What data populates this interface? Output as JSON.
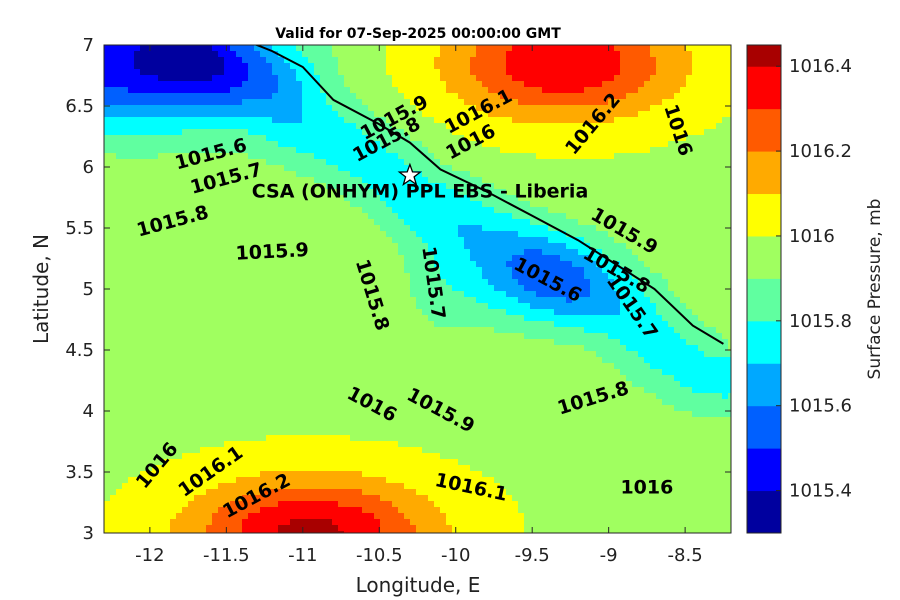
{
  "chart_data": {
    "type": "contour",
    "title": "Valid for 07-Sep-2025 00:00:00 GMT",
    "xlabel": "Longitude, E",
    "ylabel": "Latitude, N",
    "xlim": [
      -12.3,
      -8.2
    ],
    "ylim": [
      3,
      7
    ],
    "x_ticks": [
      -12,
      -11.5,
      -11,
      -10.5,
      -10,
      -9.5,
      -9,
      -8.5
    ],
    "x_tick_labels": [
      "-12",
      "-11.5",
      "-11",
      "-10.5",
      "-10",
      "-9.5",
      "-9",
      "-8.5"
    ],
    "y_ticks": [
      3,
      3.5,
      4,
      4.5,
      5,
      5.5,
      6,
      6.5,
      7
    ],
    "y_tick_labels": [
      "3",
      "3.5",
      "4",
      "4.5",
      "5",
      "5.5",
      "6",
      "6.5",
      "7"
    ],
    "grid": false,
    "colorbar": {
      "label": "Surface Pressure, mb",
      "range": [
        1015.3,
        1016.45
      ],
      "ticks": [
        1015.4,
        1015.6,
        1015.8,
        1016,
        1016.2,
        1016.4
      ],
      "tick_labels": [
        "1015.4",
        "1015.6",
        "1015.8",
        "1016",
        "1016.2",
        "1016.4"
      ],
      "levels": [
        {
          "from": 1015.3,
          "to": 1015.4,
          "color": "#00009f"
        },
        {
          "from": 1015.4,
          "to": 1015.5,
          "color": "#0000ff"
        },
        {
          "from": 1015.5,
          "to": 1015.6,
          "color": "#0060ff"
        },
        {
          "from": 1015.6,
          "to": 1015.7,
          "color": "#00a8ff"
        },
        {
          "from": 1015.7,
          "to": 1015.8,
          "color": "#00ffff"
        },
        {
          "from": 1015.8,
          "to": 1015.9,
          "color": "#60ffa0"
        },
        {
          "from": 1015.9,
          "to": 1016.0,
          "color": "#a0ff60"
        },
        {
          "from": 1016.0,
          "to": 1016.1,
          "color": "#ffff00"
        },
        {
          "from": 1016.1,
          "to": 1016.2,
          "color": "#ffaa00"
        },
        {
          "from": 1016.2,
          "to": 1016.3,
          "color": "#ff5a00"
        },
        {
          "from": 1016.3,
          "to": 1016.4,
          "color": "#ff0000"
        },
        {
          "from": 1016.4,
          "to": 1016.5,
          "color": "#a80000"
        }
      ]
    },
    "pressure_centers": [
      {
        "lon": -9.45,
        "lat": 5.05,
        "value": 1015.55,
        "amp": -0.26,
        "sx": 0.5,
        "sy": 0.38
      },
      {
        "lon": -12.1,
        "lat": 6.85,
        "value": 1015.3,
        "amp": -0.55,
        "sx": 0.9,
        "sy": 0.55
      },
      {
        "lon": -10.95,
        "lat": 3.0,
        "value": 1016.35,
        "amp": 0.45,
        "sx": 0.8,
        "sy": 0.45
      },
      {
        "lon": -9.3,
        "lat": 6.85,
        "value": 1016.25,
        "amp": 0.42,
        "sx": 0.75,
        "sy": 0.45
      }
    ],
    "contour_labels": [
      {
        "text": "1016.1",
        "lon": -9.85,
        "lat": 6.45,
        "angle": -28
      },
      {
        "text": "1015.9",
        "lon": -10.4,
        "lat": 6.4,
        "angle": -28
      },
      {
        "text": "1016",
        "lon": -9.9,
        "lat": 6.2,
        "angle": -28
      },
      {
        "text": "1015.8",
        "lon": -10.45,
        "lat": 6.22,
        "angle": -28
      },
      {
        "text": "1016.2",
        "lon": -9.1,
        "lat": 6.35,
        "angle": -50
      },
      {
        "text": "1016",
        "lon": -8.55,
        "lat": 6.3,
        "angle": 72
      },
      {
        "text": "1015.6",
        "lon": -11.6,
        "lat": 6.1,
        "angle": -15
      },
      {
        "text": "1015.7",
        "lon": -11.5,
        "lat": 5.9,
        "angle": -15
      },
      {
        "text": "1015.8",
        "lon": -11.85,
        "lat": 5.55,
        "angle": -15
      },
      {
        "text": "1015.9",
        "lon": -11.2,
        "lat": 5.3,
        "angle": -3
      },
      {
        "text": "1015.9",
        "lon": -8.9,
        "lat": 5.47,
        "angle": 30
      },
      {
        "text": "1015.8",
        "lon": -8.95,
        "lat": 5.15,
        "angle": 30
      },
      {
        "text": "1015.6",
        "lon": -9.4,
        "lat": 5.07,
        "angle": 28
      },
      {
        "text": "1015.7",
        "lon": -8.85,
        "lat": 4.85,
        "angle": 55
      },
      {
        "text": "1015.8",
        "lon": -10.55,
        "lat": 4.95,
        "angle": 73
      },
      {
        "text": "1015.7",
        "lon": -10.15,
        "lat": 5.05,
        "angle": 82
      },
      {
        "text": "1016",
        "lon": -10.55,
        "lat": 4.05,
        "angle": 28
      },
      {
        "text": "1015.9",
        "lon": -10.1,
        "lat": 4.0,
        "angle": 28
      },
      {
        "text": "1015.8",
        "lon": -9.1,
        "lat": 4.1,
        "angle": -17
      },
      {
        "text": "1016",
        "lon": -11.95,
        "lat": 3.55,
        "angle": -50
      },
      {
        "text": "1016.1",
        "lon": -11.6,
        "lat": 3.5,
        "angle": -35
      },
      {
        "text": "1016.2",
        "lon": -11.3,
        "lat": 3.3,
        "angle": -28
      },
      {
        "text": "1016.1",
        "lon": -9.9,
        "lat": 3.37,
        "angle": 12
      },
      {
        "text": "1016",
        "lon": -8.75,
        "lat": 3.37,
        "angle": 0
      }
    ],
    "site": {
      "label": "CSA (ONHYM) PPL EBS  - Liberia",
      "lon": -10.3,
      "lat": 5.93
    },
    "coastline": [
      [
        -11.4,
        7.05
      ],
      [
        -11.2,
        6.95
      ],
      [
        -11.0,
        6.82
      ],
      [
        -10.8,
        6.55
      ],
      [
        -10.5,
        6.35
      ],
      [
        -10.3,
        6.2
      ],
      [
        -10.1,
        5.98
      ],
      [
        -9.8,
        5.8
      ],
      [
        -9.5,
        5.6
      ],
      [
        -9.2,
        5.4
      ],
      [
        -8.95,
        5.2
      ],
      [
        -8.7,
        5.0
      ],
      [
        -8.45,
        4.7
      ],
      [
        -8.25,
        4.55
      ]
    ]
  }
}
